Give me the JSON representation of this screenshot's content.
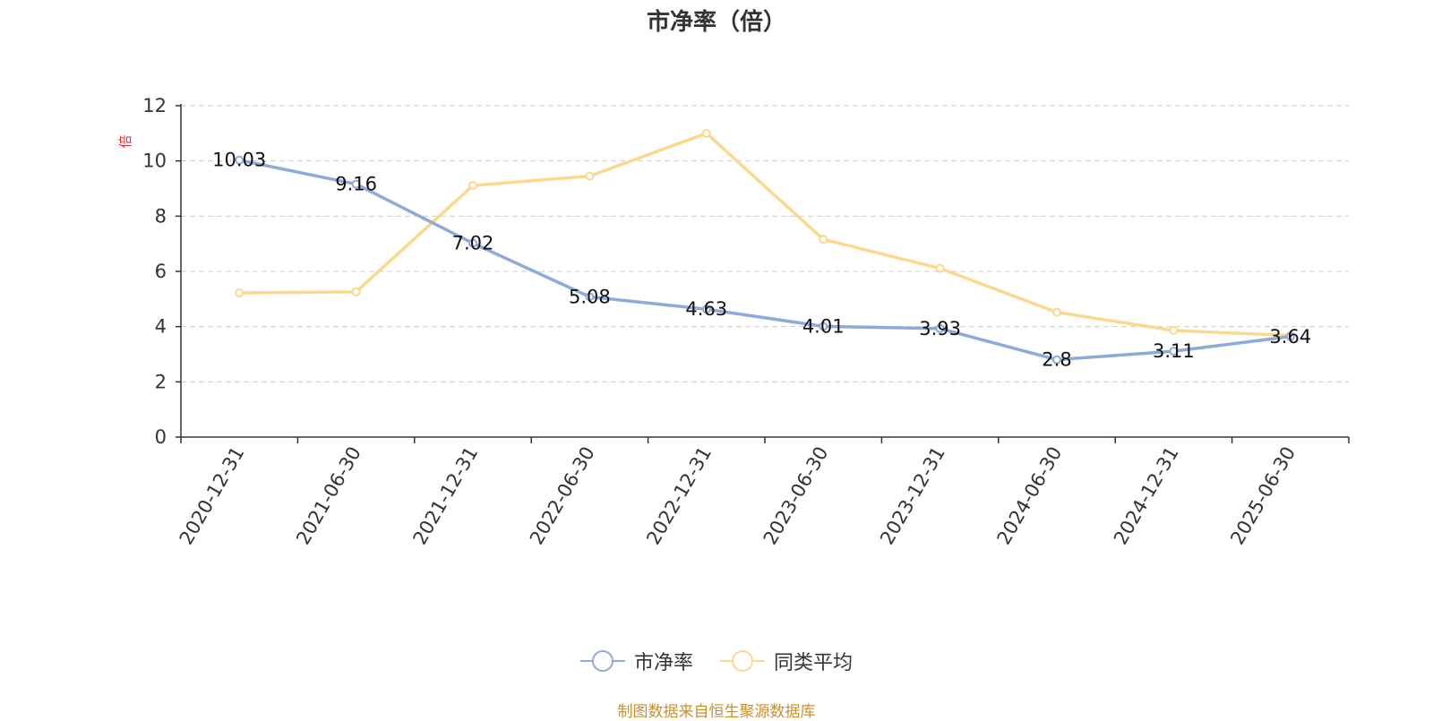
{
  "chart_data": {
    "type": "line",
    "title": "市净率（倍）",
    "ylabel": "倍",
    "ylim": [
      0,
      12
    ],
    "yticks": [
      0,
      2,
      4,
      6,
      8,
      10,
      12
    ],
    "grid": true,
    "legend_position": "bottom",
    "categories": [
      "2020-12-31",
      "2021-06-30",
      "2021-12-31",
      "2022-06-30",
      "2022-12-31",
      "2023-06-30",
      "2023-12-31",
      "2024-06-30",
      "2024-12-31",
      "2025-06-30"
    ],
    "series": [
      {
        "name": "市净率",
        "color": "#8eaad8",
        "show_labels": true,
        "values": [
          10.03,
          9.16,
          7.02,
          5.08,
          4.63,
          4.01,
          3.93,
          2.8,
          3.11,
          3.64
        ]
      },
      {
        "name": "同类平均",
        "color": "#fbd88d",
        "show_labels": false,
        "values": [
          5.22,
          5.26,
          9.11,
          9.45,
          11.0,
          7.16,
          6.11,
          4.52,
          3.86,
          3.68
        ]
      }
    ]
  },
  "source_note": "制图数据来自恒生聚源数据库"
}
